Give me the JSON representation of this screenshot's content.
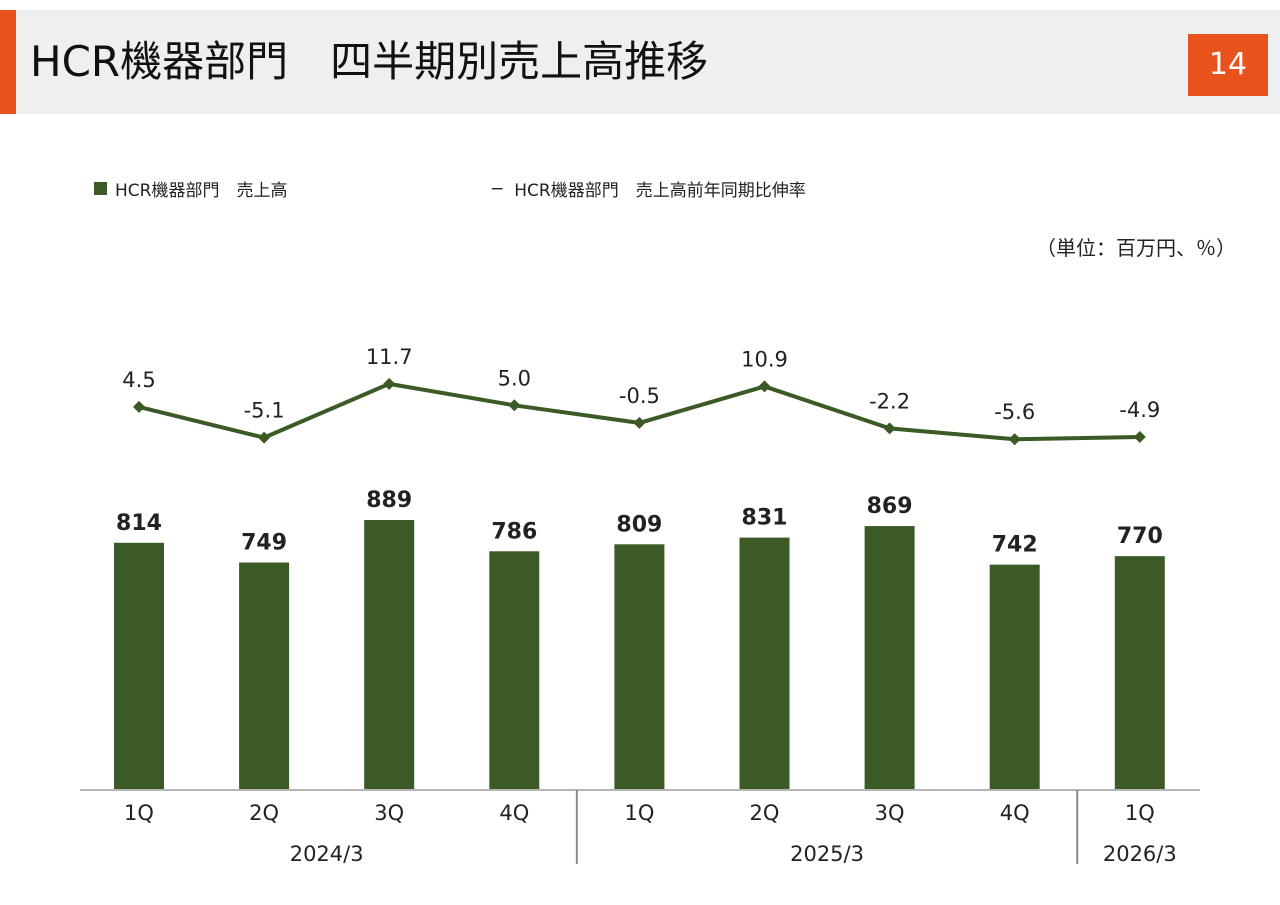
{
  "header": {
    "title": "HCR機器部門　四半期別売上高推移",
    "page_number": "14"
  },
  "legend": {
    "bar_label": "HCR機器部門　売上高",
    "line_label": "HCR機器部門　売上高前年同期比伸率",
    "line_marker": "−"
  },
  "unit_label": "（単位：百万円、％）",
  "colors": {
    "accent": "#e8521c",
    "bar": "#3b5a25",
    "line": "#3b5a25",
    "header_bg": "#efefef"
  },
  "chart_data": {
    "type": "bar",
    "categories": [
      "1Q",
      "2Q",
      "3Q",
      "4Q",
      "1Q",
      "2Q",
      "3Q",
      "4Q",
      "1Q"
    ],
    "groups": [
      {
        "label": "2024/3",
        "count": 4
      },
      {
        "label": "2025/3",
        "count": 4
      },
      {
        "label": "2026/3",
        "count": 1
      }
    ],
    "series": [
      {
        "name": "HCR機器部門　売上高",
        "type": "bar",
        "values": [
          814,
          749,
          889,
          786,
          809,
          831,
          869,
          742,
          770
        ]
      },
      {
        "name": "HCR機器部門　売上高前年同期比伸率",
        "type": "line",
        "values": [
          4.5,
          -5.1,
          11.7,
          5.0,
          -0.5,
          10.9,
          -2.2,
          -5.6,
          -4.9
        ]
      }
    ],
    "bar_labels": [
      "814",
      "749",
      "889",
      "786",
      "809",
      "831",
      "869",
      "742",
      "770"
    ],
    "line_labels": [
      "4.5",
      "-5.1",
      "11.7",
      "5.0",
      "-0.5",
      "10.9",
      "-2.2",
      "-5.6",
      "-4.9"
    ],
    "ylim_bar": [
      0,
      1000
    ],
    "ylim_line": [
      -20,
      30
    ],
    "grid": false,
    "legend_position": "top-left"
  }
}
